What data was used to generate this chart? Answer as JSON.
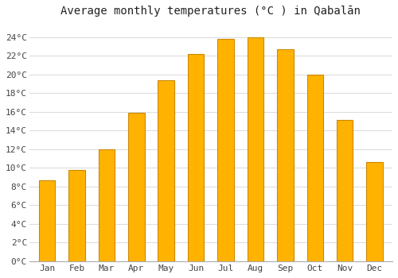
{
  "title": "Average monthly temperatures (°C ) in Qabalān",
  "months": [
    "Jan",
    "Feb",
    "Mar",
    "Apr",
    "May",
    "Jun",
    "Jul",
    "Aug",
    "Sep",
    "Oct",
    "Nov",
    "Dec"
  ],
  "temperatures": [
    8.7,
    9.8,
    12.0,
    15.9,
    19.4,
    22.2,
    23.8,
    24.0,
    22.7,
    20.0,
    15.1,
    10.6
  ],
  "bar_color_top": "#FFB300",
  "bar_color_bottom": "#FF9900",
  "bar_edge_color": "#CC8800",
  "background_color": "#FFFFFF",
  "grid_color": "#DDDDDD",
  "ytick_labels": [
    "0°C",
    "2°C",
    "4°C",
    "6°C",
    "8°C",
    "10°C",
    "12°C",
    "14°C",
    "16°C",
    "18°C",
    "20°C",
    "22°C",
    "24°C"
  ],
  "ytick_values": [
    0,
    2,
    4,
    6,
    8,
    10,
    12,
    14,
    16,
    18,
    20,
    22,
    24
  ],
  "ylim": [
    0,
    25.5
  ],
  "title_fontsize": 10,
  "tick_fontsize": 8,
  "font_family": "monospace",
  "bar_width": 0.55
}
